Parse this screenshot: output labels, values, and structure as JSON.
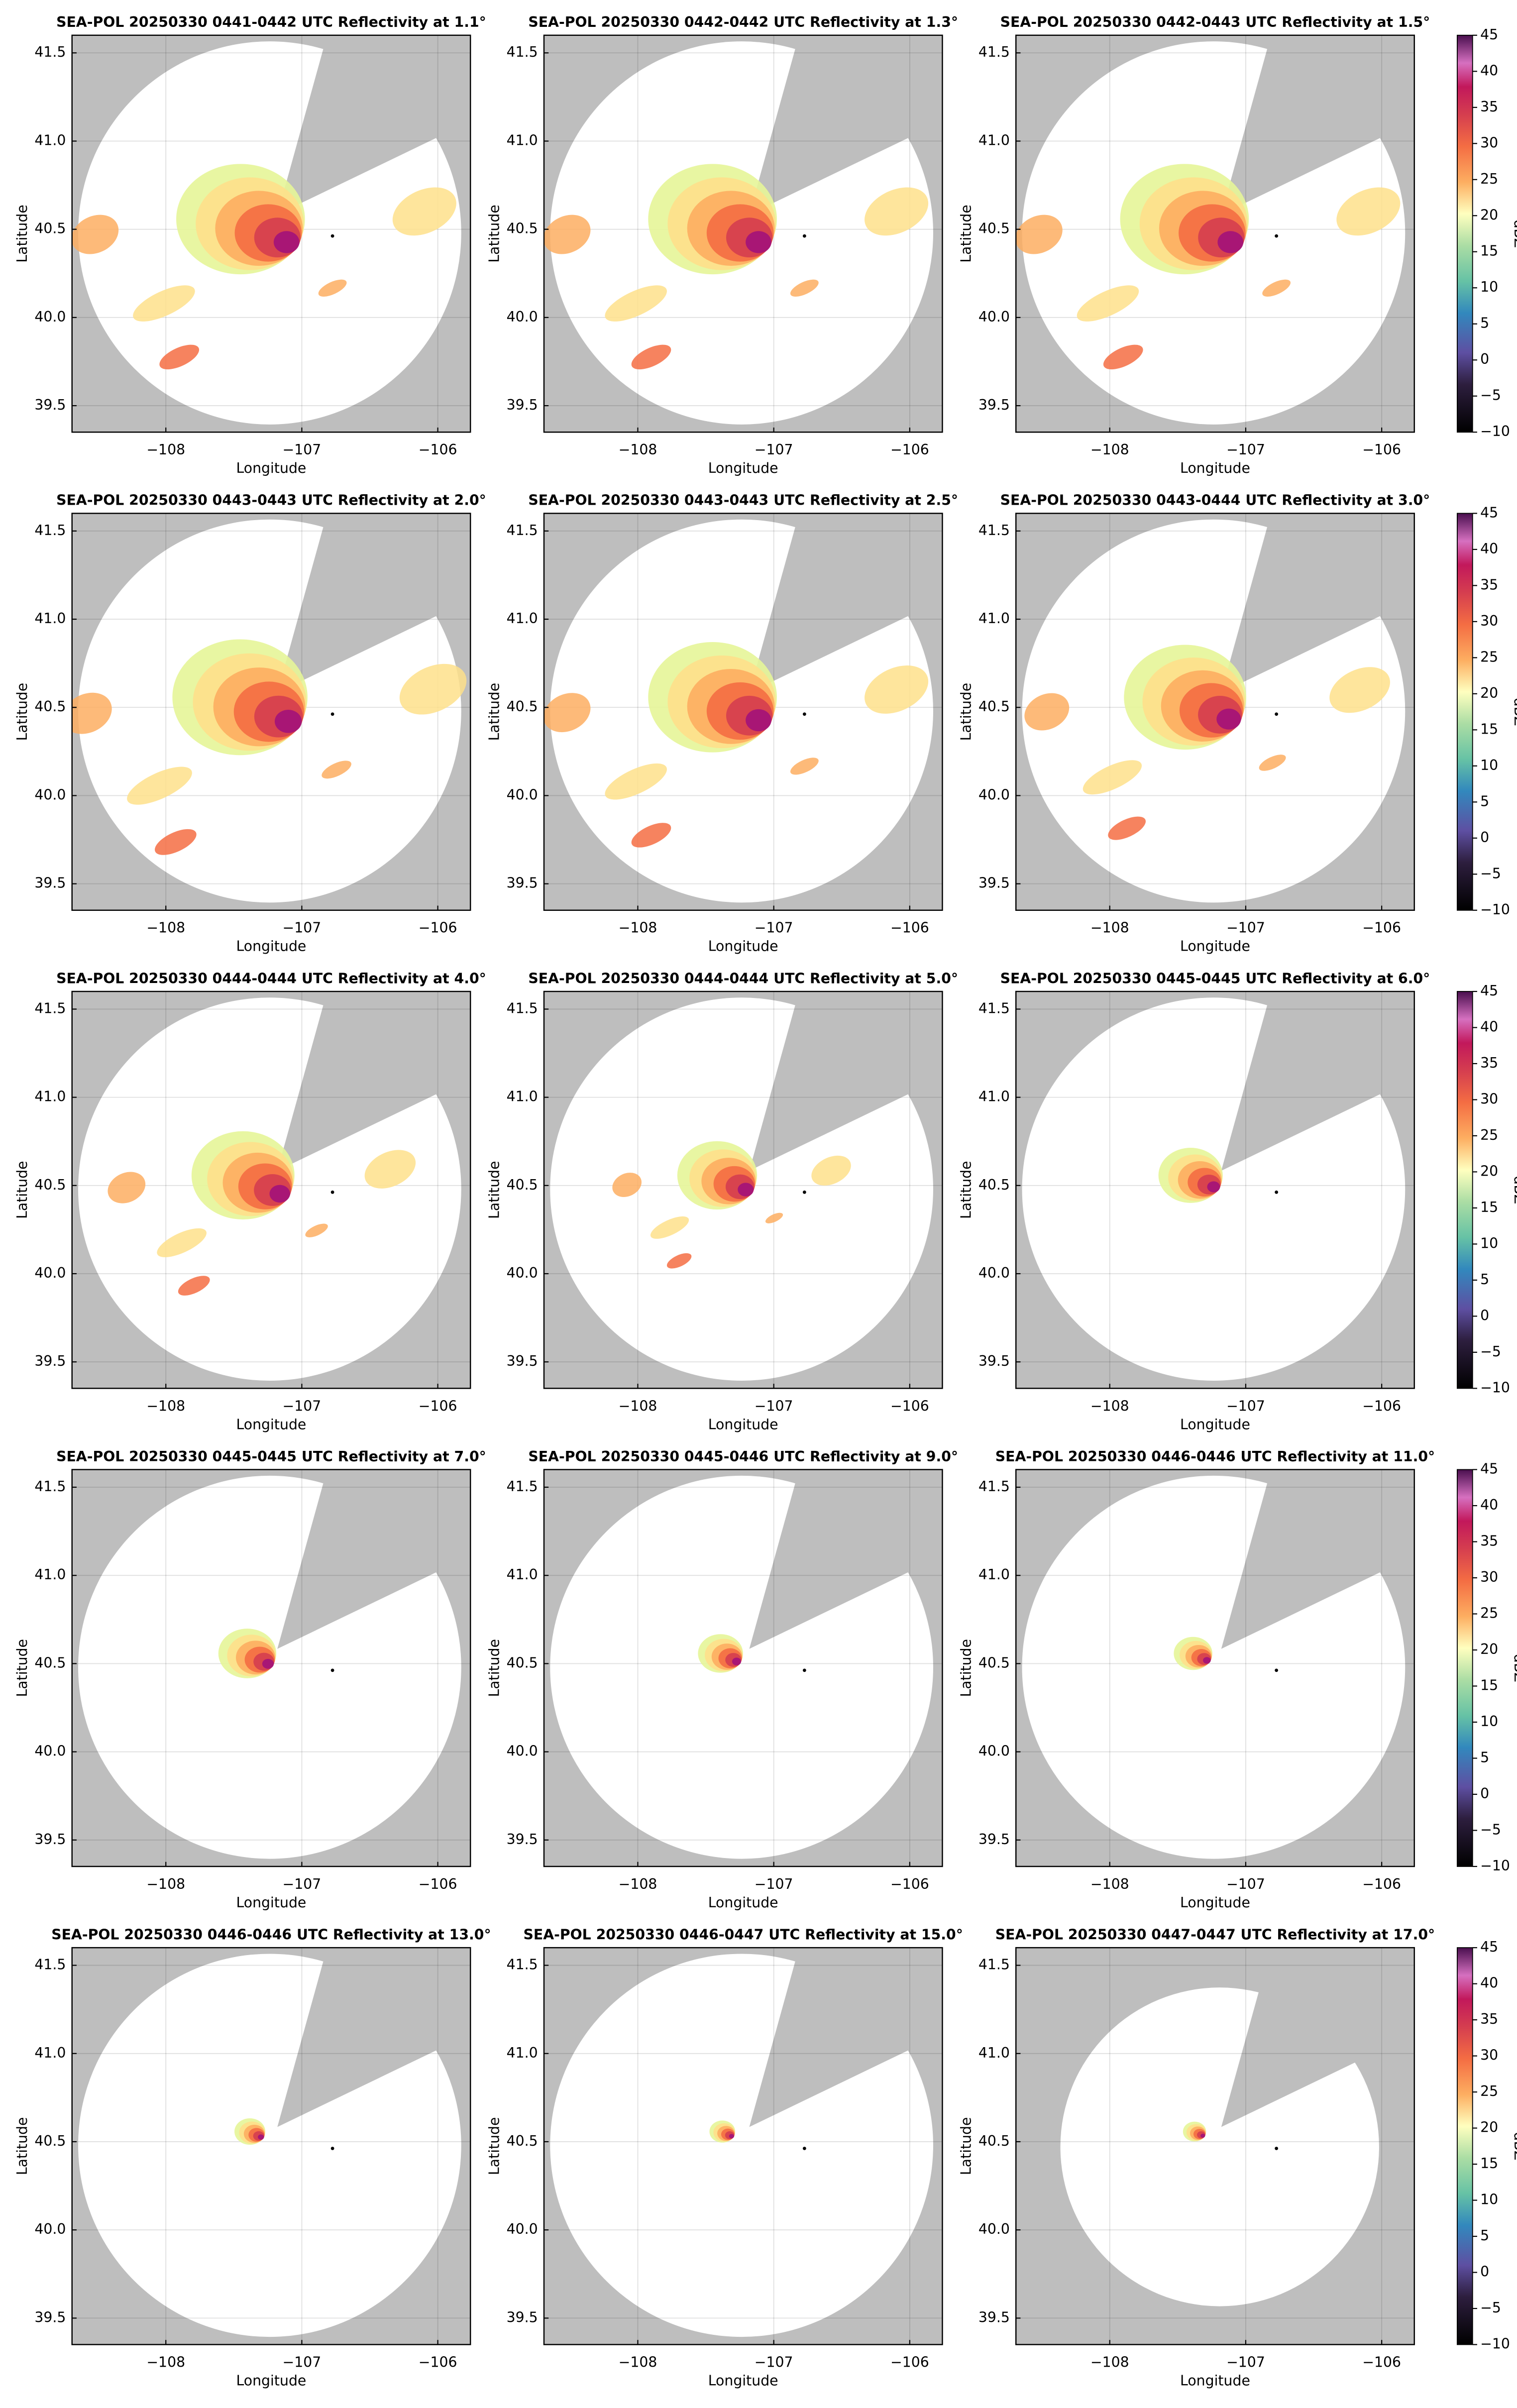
{
  "chart_data": [
    {
      "type": "ppi",
      "title": "SEA-POL 20250330 0441-0442 UTC Reflectivity at 1.1°",
      "xlabel": "Longitude",
      "ylabel": "Latitude",
      "xlim": [
        -108.69,
        -105.76
      ],
      "ylim": [
        39.35,
        41.6
      ],
      "xticks": [
        {
          "value": -108,
          "label": "−108"
        },
        {
          "value": -107,
          "label": "−107"
        },
        {
          "value": -106,
          "label": "−106"
        }
      ],
      "yticks": [
        39.5,
        {
          "value": 40,
          "label": "40.0"
        },
        40.5,
        {
          "value": 41,
          "label": "41.0"
        },
        41.5
      ],
      "grid": true
    },
    {
      "type": "ppi",
      "title": "SEA-POL 20250330 0442-0442 UTC Reflectivity at 1.3°",
      "xlabel": "Longitude",
      "ylabel": "Latitude",
      "xlim": [
        -108.69,
        -105.76
      ],
      "ylim": [
        39.35,
        41.6
      ],
      "xticks": [
        {
          "value": -108,
          "label": "−108"
        },
        {
          "value": -107,
          "label": "−107"
        },
        {
          "value": -106,
          "label": "−106"
        }
      ],
      "yticks": [
        39.5,
        {
          "value": 40,
          "label": "40.0"
        },
        40.5,
        {
          "value": 41,
          "label": "41.0"
        },
        41.5
      ],
      "grid": true
    },
    {
      "type": "ppi",
      "title": "SEA-POL 20250330 0442-0443 UTC Reflectivity at 1.5°",
      "xlabel": "Longitude",
      "ylabel": "Latitude",
      "xlim": [
        -108.69,
        -105.76
      ],
      "ylim": [
        39.35,
        41.6
      ],
      "xticks": [
        {
          "value": -108,
          "label": "−108"
        },
        {
          "value": -107,
          "label": "−107"
        },
        {
          "value": -106,
          "label": "−106"
        }
      ],
      "yticks": [
        39.5,
        {
          "value": 40,
          "label": "40.0"
        },
        40.5,
        {
          "value": 41,
          "label": "41.0"
        },
        41.5
      ],
      "grid": true,
      "colorbar": {
        "label": "dBZ",
        "lim": [
          -10,
          45
        ],
        "ticks": [
          {
            "value": -10,
            "label": "−10"
          },
          {
            "value": -5,
            "label": "−5"
          },
          0,
          5,
          10,
          15,
          20,
          25,
          30,
          35,
          40,
          45
        ]
      }
    },
    {
      "type": "ppi",
      "title": "SEA-POL 20250330 0443-0443 UTC Reflectivity at 2.0°",
      "xlabel": "Longitude",
      "ylabel": "Latitude",
      "xlim": [
        -108.69,
        -105.76
      ],
      "ylim": [
        39.35,
        41.6
      ],
      "xticks": [
        {
          "value": -108,
          "label": "−108"
        },
        {
          "value": -107,
          "label": "−107"
        },
        {
          "value": -106,
          "label": "−106"
        }
      ],
      "yticks": [
        39.5,
        {
          "value": 40,
          "label": "40.0"
        },
        40.5,
        {
          "value": 41,
          "label": "41.0"
        },
        41.5
      ],
      "grid": true
    },
    {
      "type": "ppi",
      "title": "SEA-POL 20250330 0443-0443 UTC Reflectivity at 2.5°",
      "xlabel": "Longitude",
      "ylabel": "Latitude",
      "xlim": [
        -108.69,
        -105.76
      ],
      "ylim": [
        39.35,
        41.6
      ],
      "xticks": [
        {
          "value": -108,
          "label": "−108"
        },
        {
          "value": -107,
          "label": "−107"
        },
        {
          "value": -106,
          "label": "−106"
        }
      ],
      "yticks": [
        39.5,
        {
          "value": 40,
          "label": "40.0"
        },
        40.5,
        {
          "value": 41,
          "label": "41.0"
        },
        41.5
      ],
      "grid": true
    },
    {
      "type": "ppi",
      "title": "SEA-POL 20250330 0443-0444 UTC Reflectivity at 3.0°",
      "xlabel": "Longitude",
      "ylabel": "Latitude",
      "xlim": [
        -108.69,
        -105.76
      ],
      "ylim": [
        39.35,
        41.6
      ],
      "xticks": [
        {
          "value": -108,
          "label": "−108"
        },
        {
          "value": -107,
          "label": "−107"
        },
        {
          "value": -106,
          "label": "−106"
        }
      ],
      "yticks": [
        39.5,
        {
          "value": 40,
          "label": "40.0"
        },
        40.5,
        {
          "value": 41,
          "label": "41.0"
        },
        41.5
      ],
      "grid": true,
      "colorbar": {
        "label": "dBZ",
        "lim": [
          -10,
          45
        ],
        "ticks": [
          {
            "value": -10,
            "label": "−10"
          },
          {
            "value": -5,
            "label": "−5"
          },
          0,
          5,
          10,
          15,
          20,
          25,
          30,
          35,
          40,
          45
        ]
      }
    },
    {
      "type": "ppi",
      "title": "SEA-POL 20250330 0444-0444 UTC Reflectivity at 4.0°",
      "xlabel": "Longitude",
      "ylabel": "Latitude",
      "xlim": [
        -108.69,
        -105.76
      ],
      "ylim": [
        39.35,
        41.6
      ],
      "xticks": [
        {
          "value": -108,
          "label": "−108"
        },
        {
          "value": -107,
          "label": "−107"
        },
        {
          "value": -106,
          "label": "−106"
        }
      ],
      "yticks": [
        39.5,
        {
          "value": 40,
          "label": "40.0"
        },
        40.5,
        {
          "value": 41,
          "label": "41.0"
        },
        41.5
      ],
      "grid": true
    },
    {
      "type": "ppi",
      "title": "SEA-POL 20250330 0444-0444 UTC Reflectivity at 5.0°",
      "xlabel": "Longitude",
      "ylabel": "Latitude",
      "xlim": [
        -108.69,
        -105.76
      ],
      "ylim": [
        39.35,
        41.6
      ],
      "xticks": [
        {
          "value": -108,
          "label": "−108"
        },
        {
          "value": -107,
          "label": "−107"
        },
        {
          "value": -106,
          "label": "−106"
        }
      ],
      "yticks": [
        39.5,
        {
          "value": 40,
          "label": "40.0"
        },
        40.5,
        {
          "value": 41,
          "label": "41.0"
        },
        41.5
      ],
      "grid": true
    },
    {
      "type": "ppi",
      "title": "SEA-POL 20250330 0445-0445 UTC Reflectivity at 6.0°",
      "xlabel": "Longitude",
      "ylabel": "Latitude",
      "xlim": [
        -108.69,
        -105.76
      ],
      "ylim": [
        39.35,
        41.6
      ],
      "xticks": [
        {
          "value": -108,
          "label": "−108"
        },
        {
          "value": -107,
          "label": "−107"
        },
        {
          "value": -106,
          "label": "−106"
        }
      ],
      "yticks": [
        39.5,
        {
          "value": 40,
          "label": "40.0"
        },
        40.5,
        {
          "value": 41,
          "label": "41.0"
        },
        41.5
      ],
      "grid": true,
      "colorbar": {
        "label": "dBZ",
        "lim": [
          -10,
          45
        ],
        "ticks": [
          {
            "value": -10,
            "label": "−10"
          },
          {
            "value": -5,
            "label": "−5"
          },
          0,
          5,
          10,
          15,
          20,
          25,
          30,
          35,
          40,
          45
        ]
      }
    },
    {
      "type": "ppi",
      "title": "SEA-POL 20250330 0445-0445 UTC Reflectivity at 7.0°",
      "xlabel": "Longitude",
      "ylabel": "Latitude",
      "xlim": [
        -108.69,
        -105.76
      ],
      "ylim": [
        39.35,
        41.6
      ],
      "xticks": [
        {
          "value": -108,
          "label": "−108"
        },
        {
          "value": -107,
          "label": "−107"
        },
        {
          "value": -106,
          "label": "−106"
        }
      ],
      "yticks": [
        39.5,
        {
          "value": 40,
          "label": "40.0"
        },
        40.5,
        {
          "value": 41,
          "label": "41.0"
        },
        41.5
      ],
      "grid": true
    },
    {
      "type": "ppi",
      "title": "SEA-POL 20250330 0445-0446 UTC Reflectivity at 9.0°",
      "xlabel": "Longitude",
      "ylabel": "Latitude",
      "xlim": [
        -108.69,
        -105.76
      ],
      "ylim": [
        39.35,
        41.6
      ],
      "xticks": [
        {
          "value": -108,
          "label": "−108"
        },
        {
          "value": -107,
          "label": "−107"
        },
        {
          "value": -106,
          "label": "−106"
        }
      ],
      "yticks": [
        39.5,
        {
          "value": 40,
          "label": "40.0"
        },
        40.5,
        {
          "value": 41,
          "label": "41.0"
        },
        41.5
      ],
      "grid": true
    },
    {
      "type": "ppi",
      "title": "SEA-POL 20250330 0446-0446 UTC Reflectivity at 11.0°",
      "xlabel": "Longitude",
      "ylabel": "Latitude",
      "xlim": [
        -108.69,
        -105.76
      ],
      "ylim": [
        39.35,
        41.6
      ],
      "xticks": [
        {
          "value": -108,
          "label": "−108"
        },
        {
          "value": -107,
          "label": "−107"
        },
        {
          "value": -106,
          "label": "−106"
        }
      ],
      "yticks": [
        39.5,
        {
          "value": 40,
          "label": "40.0"
        },
        40.5,
        {
          "value": 41,
          "label": "41.0"
        },
        41.5
      ],
      "grid": true,
      "colorbar": {
        "label": "dBZ",
        "lim": [
          -10,
          45
        ],
        "ticks": [
          {
            "value": -10,
            "label": "−10"
          },
          {
            "value": -5,
            "label": "−5"
          },
          0,
          5,
          10,
          15,
          20,
          25,
          30,
          35,
          40,
          45
        ]
      }
    },
    {
      "type": "ppi",
      "title": "SEA-POL 20250330 0446-0446 UTC Reflectivity at 13.0°",
      "xlabel": "Longitude",
      "ylabel": "Latitude",
      "xlim": [
        -108.69,
        -105.76
      ],
      "ylim": [
        39.35,
        41.6
      ],
      "xticks": [
        {
          "value": -108,
          "label": "−108"
        },
        {
          "value": -107,
          "label": "−107"
        },
        {
          "value": -106,
          "label": "−106"
        }
      ],
      "yticks": [
        39.5,
        {
          "value": 40,
          "label": "40.0"
        },
        40.5,
        {
          "value": 41,
          "label": "41.0"
        },
        41.5
      ],
      "grid": true
    },
    {
      "type": "ppi",
      "title": "SEA-POL 20250330 0446-0447 UTC Reflectivity at 15.0°",
      "xlabel": "Longitude",
      "ylabel": "Latitude",
      "xlim": [
        -108.69,
        -105.76
      ],
      "ylim": [
        39.35,
        41.6
      ],
      "xticks": [
        {
          "value": -108,
          "label": "−108"
        },
        {
          "value": -107,
          "label": "−107"
        },
        {
          "value": -106,
          "label": "−106"
        }
      ],
      "yticks": [
        39.5,
        {
          "value": 40,
          "label": "40.0"
        },
        40.5,
        {
          "value": 41,
          "label": "41.0"
        },
        41.5
      ],
      "grid": true
    },
    {
      "type": "ppi",
      "title": "SEA-POL 20250330 0447-0447 UTC Reflectivity at 17.0°",
      "xlabel": "Longitude",
      "ylabel": "Latitude",
      "xlim": [
        -108.69,
        -105.76
      ],
      "ylim": [
        39.35,
        41.6
      ],
      "xticks": [
        {
          "value": -108,
          "label": "−108"
        },
        {
          "value": -107,
          "label": "−107"
        },
        {
          "value": -106,
          "label": "−106"
        }
      ],
      "yticks": [
        39.5,
        {
          "value": 40,
          "label": "40.0"
        },
        40.5,
        {
          "value": 41,
          "label": "41.0"
        },
        41.5
      ],
      "grid": true,
      "colorbar": {
        "label": "dBZ",
        "lim": [
          -10,
          45
        ],
        "ticks": [
          {
            "value": -10,
            "label": "−10"
          },
          {
            "value": -5,
            "label": "−5"
          },
          0,
          5,
          10,
          15,
          20,
          25,
          30,
          35,
          40,
          45
        ]
      }
    }
  ]
}
